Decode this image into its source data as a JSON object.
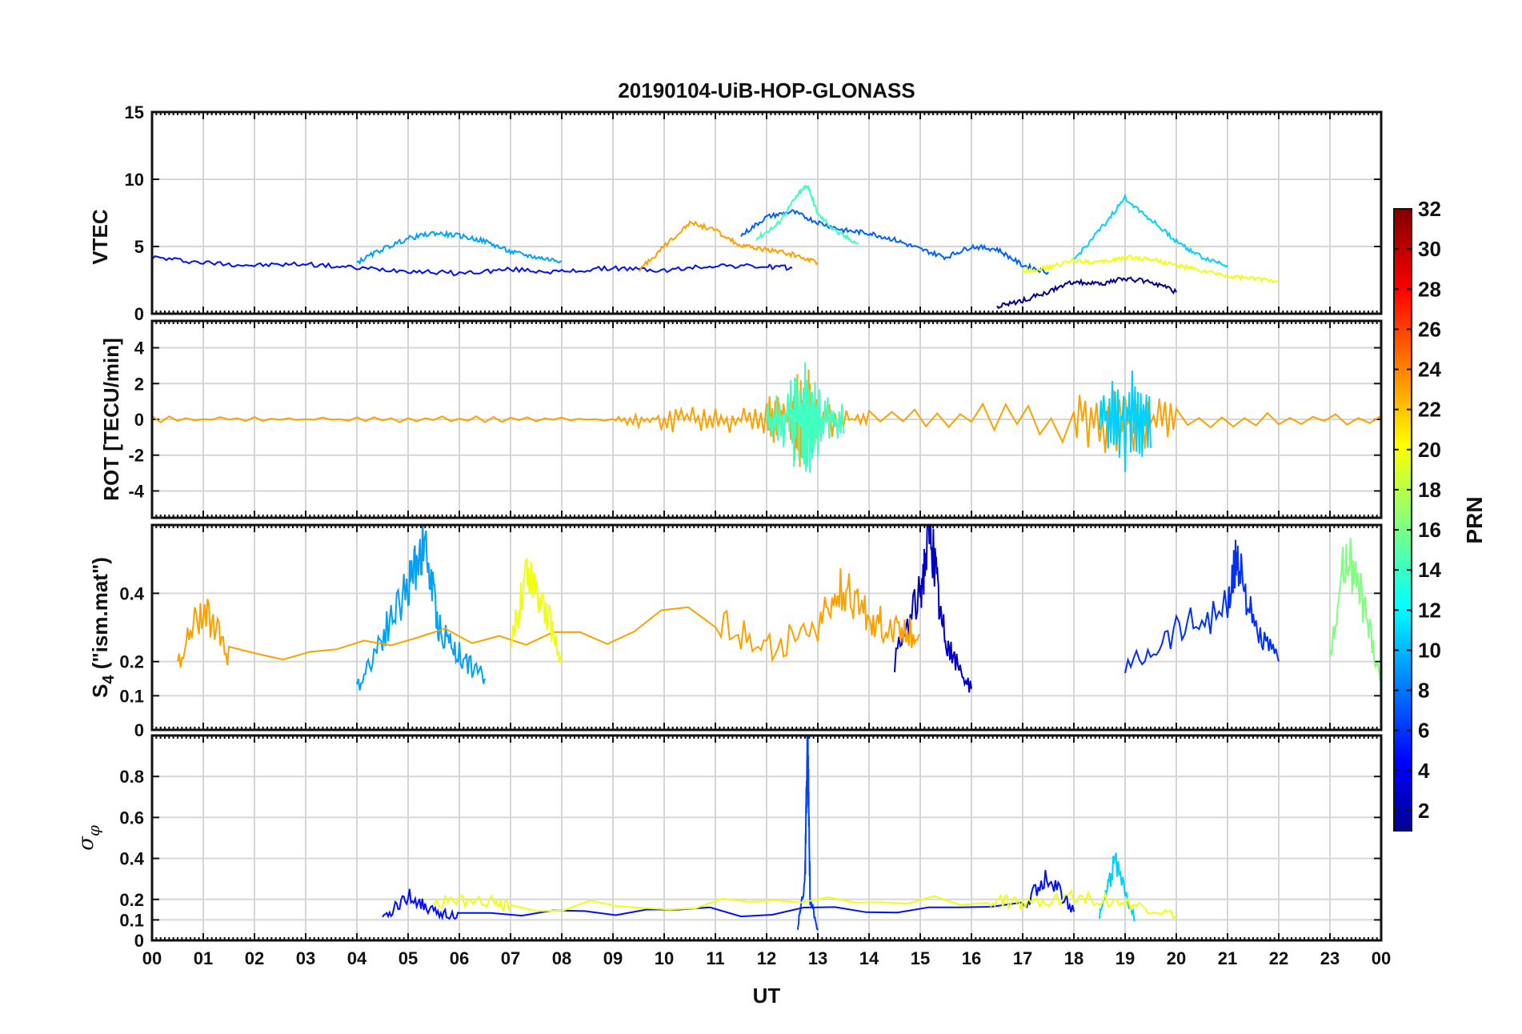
{
  "figure": {
    "title": "20190104-UiB-HOP-GLONASS",
    "xlabel": "UT",
    "x_tick_labels": [
      "00",
      "01",
      "02",
      "03",
      "04",
      "05",
      "06",
      "07",
      "08",
      "09",
      "10",
      "11",
      "12",
      "13",
      "14",
      "15",
      "16",
      "17",
      "18",
      "19",
      "20",
      "21",
      "22",
      "23",
      "00"
    ]
  },
  "colorbar": {
    "label": "PRN",
    "range": [
      1,
      32
    ],
    "tick_labels": [
      "2",
      "4",
      "6",
      "8",
      "10",
      "12",
      "14",
      "16",
      "18",
      "20",
      "22",
      "24",
      "26",
      "28",
      "30",
      "32"
    ],
    "colormap": "jet"
  },
  "chart_data": [
    {
      "type": "line",
      "ylabel": "VTEC",
      "ylim": [
        0,
        15
      ],
      "yticks": [
        0,
        5,
        10,
        15
      ],
      "ytick_labels": [
        "0",
        "5",
        "10",
        "15"
      ],
      "xlim": [
        0,
        24
      ],
      "series": [
        {
          "name": "PRN 3",
          "prn": 3,
          "color": "#0010ff",
          "x": [
            0,
            1,
            2,
            3,
            4,
            5,
            6,
            7,
            8,
            9,
            10,
            11,
            12,
            12.5
          ],
          "values": [
            4.2,
            3.8,
            3.6,
            3.7,
            3.4,
            3.2,
            3.0,
            3.3,
            3.1,
            3.4,
            3.2,
            3.6,
            3.5,
            3.4
          ]
        },
        {
          "name": "PRN 7",
          "prn": 7,
          "color": "#0060ff",
          "x": [
            11.5,
            12,
            12.5,
            13,
            13.5,
            14,
            14.5,
            15,
            15.5,
            16,
            16.5,
            17,
            17.5
          ],
          "values": [
            5.8,
            7.2,
            7.6,
            6.8,
            6.2,
            6.0,
            5.5,
            4.8,
            4.2,
            5.0,
            4.8,
            3.6,
            3.1
          ]
        },
        {
          "name": "PRN 10",
          "prn": 10,
          "color": "#00a0ff",
          "x": [
            4,
            4.5,
            5,
            5.5,
            6,
            6.5,
            7,
            7.5,
            8
          ],
          "values": [
            3.8,
            4.8,
            5.6,
            6.0,
            5.8,
            5.4,
            4.6,
            4.2,
            3.9
          ]
        },
        {
          "name": "PRN 12",
          "prn": 12,
          "color": "#00d0ff",
          "x": [
            18,
            18.5,
            19,
            19.5,
            20,
            20.5,
            21
          ],
          "values": [
            4.0,
            6.2,
            8.6,
            7.0,
            5.4,
            4.2,
            3.6
          ]
        },
        {
          "name": "PRN 15",
          "prn": 15,
          "color": "#40ffc0",
          "x": [
            11.8,
            12.2,
            12.6,
            12.8,
            13,
            13.4,
            13.8
          ],
          "values": [
            5.6,
            6.6,
            8.8,
            9.6,
            7.4,
            6.0,
            5.2
          ]
        },
        {
          "name": "PRN 20",
          "prn": 20,
          "color": "#f0ff10",
          "x": [
            17,
            17.5,
            18,
            18.5,
            19,
            19.5,
            20,
            20.5,
            21,
            21.5,
            22
          ],
          "values": [
            3.2,
            3.4,
            4.0,
            3.8,
            4.2,
            4.1,
            3.6,
            3.2,
            2.8,
            2.6,
            2.5
          ]
        },
        {
          "name": "PRN 23",
          "prn": 23,
          "color": "#ffa000",
          "x": [
            9.5,
            10,
            10.5,
            11,
            11.5,
            12,
            12.5,
            13
          ],
          "values": [
            3.2,
            5.0,
            6.8,
            6.2,
            5.0,
            4.8,
            4.4,
            3.8
          ]
        },
        {
          "name": "PRN 1",
          "prn": 1,
          "color": "#000090",
          "x": [
            16.5,
            17,
            17.5,
            18,
            18.5,
            19,
            19.5,
            20
          ],
          "values": [
            0.5,
            1.0,
            1.6,
            2.4,
            2.2,
            2.6,
            2.4,
            1.6
          ]
        }
      ]
    },
    {
      "type": "line",
      "ylabel": "ROT [TECU/min]",
      "ylim": [
        -5.5,
        5.5
      ],
      "yticks": [
        -4,
        -2,
        0,
        2,
        4
      ],
      "ytick_labels": [
        "-4",
        "-2",
        "0",
        "2",
        "4"
      ],
      "xlim": [
        0,
        24
      ],
      "series": [
        {
          "name": "PRN 23",
          "prn": 23,
          "color": "#ffa000",
          "x": [
            0,
            3,
            6,
            9,
            10,
            11,
            12,
            12.5,
            12.8,
            13,
            14,
            18,
            19,
            20,
            24
          ],
          "values": [
            0.2,
            0.1,
            0.2,
            0.1,
            0.8,
            0.6,
            1.2,
            2.4,
            3.0,
            1.2,
            0.5,
            1.4,
            2.2,
            0.8,
            0.2
          ]
        },
        {
          "name": "PRN 15",
          "prn": 15,
          "color": "#40ffc0",
          "x": [
            12,
            12.5,
            12.8,
            13,
            13.5
          ],
          "values": [
            -1.0,
            -2.6,
            -3.4,
            -2.2,
            -0.8
          ]
        },
        {
          "name": "PRN 12",
          "prn": 12,
          "color": "#00d0ff",
          "x": [
            18.5,
            19,
            19.5
          ],
          "values": [
            -1.4,
            -3.2,
            -1.6
          ]
        }
      ]
    },
    {
      "type": "line",
      "ylabel": "S4 (\"ism.mat\")",
      "ylabel_main": "S",
      "ylabel_sub": "4",
      "ylabel_rest": " (\"ism.mat\")",
      "ylim": [
        0,
        0.6
      ],
      "yticks": [
        0,
        0.1,
        0.2,
        0.4
      ],
      "ytick_labels": [
        "0",
        "0.1",
        "0.2",
        "0.4"
      ],
      "xlim": [
        0,
        24
      ],
      "series": [
        {
          "name": "PRN 10",
          "prn": 10,
          "color": "#00a0ff",
          "x": [
            4,
            4.5,
            5,
            5.3,
            5.6,
            6,
            6.5
          ],
          "values": [
            0.12,
            0.28,
            0.42,
            0.56,
            0.3,
            0.22,
            0.15
          ]
        },
        {
          "name": "PRN 2",
          "prn": 2,
          "color": "#0000c0",
          "x": [
            14.5,
            15,
            15.2,
            15.4,
            15.6,
            16
          ],
          "values": [
            0.2,
            0.4,
            0.6,
            0.32,
            0.22,
            0.12
          ]
        },
        {
          "name": "PRN 5",
          "prn": 5,
          "color": "#0030ff",
          "x": [
            19,
            20,
            21,
            21.2,
            21.5,
            22
          ],
          "values": [
            0.18,
            0.3,
            0.36,
            0.52,
            0.3,
            0.2
          ]
        },
        {
          "name": "PRN 23",
          "prn": 23,
          "color": "#ffa000",
          "x": [
            0.5,
            1,
            1.5,
            11,
            12,
            13,
            13.5,
            14,
            14.5,
            15
          ],
          "values": [
            0.2,
            0.36,
            0.22,
            0.32,
            0.24,
            0.3,
            0.42,
            0.32,
            0.3,
            0.28
          ]
        },
        {
          "name": "PRN 20",
          "prn": 20,
          "color": "#f0ff10",
          "x": [
            7,
            7.3,
            7.6,
            8
          ],
          "values": [
            0.22,
            0.48,
            0.4,
            0.2
          ]
        },
        {
          "name": "PRN 16",
          "prn": 16,
          "color": "#80ff80",
          "x": [
            23,
            23.3,
            23.6,
            24
          ],
          "values": [
            0.2,
            0.52,
            0.4,
            0.15
          ]
        }
      ]
    },
    {
      "type": "line",
      "ylabel": "σφ",
      "ylabel_main": "σ",
      "ylabel_sub": "φ",
      "ylim": [
        0,
        1.0
      ],
      "yticks": [
        0,
        0.1,
        0.2,
        0.4,
        0.6,
        0.8
      ],
      "ytick_labels": [
        "0",
        "0.1",
        "0.2",
        "0.4",
        "0.6",
        "0.8"
      ],
      "xlim": [
        0,
        24
      ],
      "series": [
        {
          "name": "PRN 6",
          "prn": 6,
          "color": "#0040ff",
          "x": [
            12.6,
            12.75,
            12.8,
            12.85,
            13
          ],
          "values": [
            0.05,
            0.3,
            0.98,
            0.2,
            0.05
          ]
        },
        {
          "name": "PRN 3",
          "prn": 3,
          "color": "#0010ff",
          "x": [
            4.5,
            5,
            5.5,
            6,
            17,
            17.5,
            18
          ],
          "values": [
            0.1,
            0.22,
            0.14,
            0.12,
            0.16,
            0.32,
            0.14
          ]
        },
        {
          "name": "PRN 12",
          "prn": 12,
          "color": "#00d0ff",
          "x": [
            18.5,
            18.8,
            19.2
          ],
          "values": [
            0.12,
            0.38,
            0.1
          ]
        },
        {
          "name": "PRN 20",
          "prn": 20,
          "color": "#f0ff10",
          "x": [
            5.5,
            6.5,
            7,
            16.3,
            17,
            18,
            19,
            20
          ],
          "values": [
            0.18,
            0.2,
            0.16,
            0.2,
            0.18,
            0.22,
            0.18,
            0.12
          ]
        }
      ]
    }
  ]
}
